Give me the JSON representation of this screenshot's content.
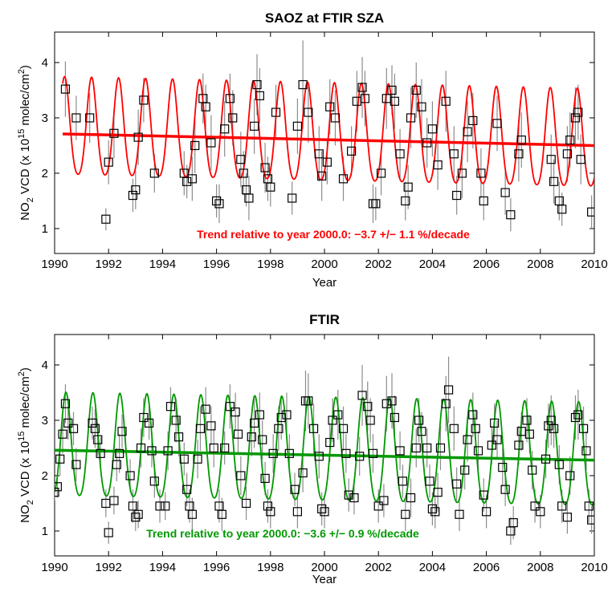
{
  "chart_data": [
    {
      "type": "scatter",
      "title": "SAOZ at FTIR SZA",
      "xlabel": "Year",
      "ylabel": {
        "main": "NO",
        "sub": "2",
        "mid": " VCD (x 10",
        "sup": "15",
        "rest": " molec/cm",
        "sup2": "2",
        "end": ")"
      },
      "xlim": [
        1990,
        2010
      ],
      "ylim": [
        0.55,
        4.55
      ],
      "xticks": [
        "1990",
        "1992",
        "1994",
        "1996",
        "1998",
        "2000",
        "2002",
        "2004",
        "2006",
        "2008",
        "2010"
      ],
      "yticks": [
        "1",
        "2",
        "3",
        "4"
      ],
      "annotation": "Trend relative to year 2000.0: −3.7 +/− 1.1 %/decade",
      "colors": {
        "fit": "#ff0000",
        "trend": "#ff0000",
        "annotation": "#ff0000",
        "errorbar": "#8c8c8c",
        "marker": "#000000"
      },
      "trend_line": {
        "x": [
          1990.3,
          2010.0
        ],
        "y": [
          2.71,
          2.5
        ]
      },
      "seasonal_fit": {
        "x_start": 1990.3,
        "x_end": 2010.0,
        "mean": 2.64,
        "slope_per_year": -0.011,
        "amplitude": 0.88,
        "peak_phase": 0.37
      },
      "data": [
        [
          1990.4,
          3.52,
          0.5
        ],
        [
          1990.8,
          3.0,
          0.4
        ],
        [
          1991.3,
          3.0,
          0.45
        ],
        [
          1991.9,
          1.17,
          0.2
        ],
        [
          1992.0,
          2.2,
          0.4
        ],
        [
          1992.2,
          2.72,
          0.45
        ],
        [
          1992.9,
          1.6,
          0.3
        ],
        [
          1993.0,
          1.7,
          0.35
        ],
        [
          1993.1,
          2.65,
          0.5
        ],
        [
          1993.3,
          3.32,
          0.4
        ],
        [
          1993.7,
          2.0,
          0.35
        ],
        [
          1994.8,
          2.0,
          0.4
        ],
        [
          1994.9,
          1.85,
          0.3
        ],
        [
          1995.1,
          1.9,
          0.4
        ],
        [
          1995.2,
          2.5,
          0.5
        ],
        [
          1995.5,
          3.35,
          0.45
        ],
        [
          1995.6,
          3.2,
          0.4
        ],
        [
          1995.8,
          2.55,
          0.5
        ],
        [
          1996.0,
          1.5,
          0.3
        ],
        [
          1996.1,
          1.45,
          0.35
        ],
        [
          1996.3,
          2.8,
          0.5
        ],
        [
          1996.5,
          3.35,
          0.45
        ],
        [
          1996.6,
          3.0,
          0.5
        ],
        [
          1996.9,
          2.25,
          0.5
        ],
        [
          1997.0,
          2.0,
          0.4
        ],
        [
          1997.1,
          1.7,
          0.3
        ],
        [
          1997.2,
          1.55,
          0.4
        ],
        [
          1997.4,
          2.85,
          0.5
        ],
        [
          1997.5,
          3.6,
          0.55
        ],
        [
          1997.6,
          3.4,
          0.5
        ],
        [
          1997.8,
          2.1,
          0.45
        ],
        [
          1997.9,
          1.9,
          0.4
        ],
        [
          1998.0,
          1.75,
          0.35
        ],
        [
          1998.2,
          3.1,
          0.5
        ],
        [
          1998.8,
          1.55,
          0.3
        ],
        [
          1999.0,
          2.85,
          0.5
        ],
        [
          1999.2,
          3.6,
          0.8
        ],
        [
          1999.4,
          3.1,
          0.55
        ],
        [
          1999.8,
          2.35,
          0.5
        ],
        [
          1999.9,
          1.95,
          0.45
        ],
        [
          2000.1,
          2.2,
          0.4
        ],
        [
          2000.2,
          3.2,
          0.5
        ],
        [
          2000.4,
          3.0,
          0.5
        ],
        [
          2000.7,
          1.9,
          0.4
        ],
        [
          2001.0,
          2.4,
          0.45
        ],
        [
          2001.2,
          3.3,
          0.55
        ],
        [
          2001.4,
          3.55,
          0.55
        ],
        [
          2001.5,
          3.35,
          0.5
        ],
        [
          2001.8,
          1.45,
          0.35
        ],
        [
          2001.9,
          1.45,
          0.3
        ],
        [
          2002.1,
          2.0,
          0.4
        ],
        [
          2002.3,
          3.35,
          0.55
        ],
        [
          2002.5,
          3.5,
          0.45
        ],
        [
          2002.6,
          3.3,
          0.5
        ],
        [
          2002.8,
          2.35,
          0.45
        ],
        [
          2003.0,
          1.5,
          0.35
        ],
        [
          2003.1,
          1.75,
          0.4
        ],
        [
          2003.2,
          3.0,
          0.55
        ],
        [
          2003.4,
          3.5,
          0.5
        ],
        [
          2003.6,
          3.2,
          0.5
        ],
        [
          2003.8,
          2.55,
          0.45
        ],
        [
          2004.0,
          2.8,
          0.5
        ],
        [
          2004.2,
          2.15,
          0.45
        ],
        [
          2004.5,
          3.3,
          0.55
        ],
        [
          2004.8,
          2.35,
          0.5
        ],
        [
          2004.9,
          1.6,
          0.35
        ],
        [
          2005.1,
          2.0,
          0.45
        ],
        [
          2005.3,
          2.75,
          0.55
        ],
        [
          2005.5,
          2.95,
          0.5
        ],
        [
          2005.8,
          2.0,
          0.45
        ],
        [
          2005.9,
          1.5,
          0.35
        ],
        [
          2006.4,
          2.9,
          0.5
        ],
        [
          2006.7,
          1.65,
          0.4
        ],
        [
          2006.9,
          1.25,
          0.3
        ],
        [
          2007.2,
          2.35,
          0.5
        ],
        [
          2007.3,
          2.6,
          0.5
        ],
        [
          2008.4,
          2.25,
          0.45
        ],
        [
          2008.5,
          1.85,
          0.4
        ],
        [
          2008.7,
          1.5,
          0.35
        ],
        [
          2008.8,
          1.35,
          0.3
        ],
        [
          2009.0,
          2.35,
          0.5
        ],
        [
          2009.1,
          2.6,
          0.5
        ],
        [
          2009.3,
          3.0,
          0.55
        ],
        [
          2009.4,
          3.1,
          0.5
        ],
        [
          2009.5,
          2.25,
          0.45
        ],
        [
          2009.9,
          1.3,
          0.3
        ]
      ]
    },
    {
      "type": "scatter",
      "title": "FTIR",
      "xlabel": "Year",
      "ylabel": {
        "main": "NO",
        "sub": "2",
        "mid": " VCD (x 10",
        "sup": "15",
        "rest": " molec/cm",
        "sup2": "2",
        "end": ")"
      },
      "xlim": [
        1990,
        2010
      ],
      "ylim": [
        0.55,
        4.55
      ],
      "xticks": [
        "1990",
        "1992",
        "1994",
        "1996",
        "1998",
        "2000",
        "2002",
        "2004",
        "2006",
        "2008",
        "2010"
      ],
      "yticks": [
        "1",
        "2",
        "3",
        "4"
      ],
      "annotation": "Trend relative to year 2000.0: −3.6 +/− 0.9 %/decade",
      "colors": {
        "fit": "#009900",
        "trend": "#009900",
        "annotation": "#009900",
        "errorbar": "#8c8c8c",
        "marker": "#000000"
      },
      "trend_line": {
        "x": [
          1990.0,
          2010.0
        ],
        "y": [
          2.46,
          2.28
        ]
      },
      "seasonal_fit": {
        "x_start": 1990.0,
        "x_end": 2010.0,
        "mean": 2.37,
        "slope_per_year": -0.009,
        "amplitude": 0.93,
        "peak_phase": 0.42
      },
      "data": [
        [
          1990.0,
          1.7,
          0.15
        ],
        [
          1990.1,
          1.8,
          0.2
        ],
        [
          1990.2,
          2.3,
          0.3
        ],
        [
          1990.3,
          2.75,
          0.35
        ],
        [
          1990.4,
          3.3,
          0.35
        ],
        [
          1990.5,
          2.95,
          0.3
        ],
        [
          1990.7,
          2.85,
          0.3
        ],
        [
          1990.8,
          2.2,
          0.3
        ],
        [
          1991.4,
          2.95,
          0.3
        ],
        [
          1991.5,
          2.85,
          0.35
        ],
        [
          1991.6,
          2.65,
          0.3
        ],
        [
          1991.7,
          2.4,
          0.3
        ],
        [
          1991.9,
          1.5,
          0.25
        ],
        [
          1992.0,
          0.97,
          0.2
        ],
        [
          1992.2,
          1.55,
          0.25
        ],
        [
          1992.3,
          2.2,
          0.3
        ],
        [
          1992.4,
          2.4,
          0.35
        ],
        [
          1992.5,
          2.8,
          0.3
        ],
        [
          1992.8,
          2.0,
          0.3
        ],
        [
          1992.9,
          1.45,
          0.3
        ],
        [
          1993.0,
          1.25,
          0.25
        ],
        [
          1993.1,
          1.3,
          0.25
        ],
        [
          1993.2,
          2.5,
          0.35
        ],
        [
          1993.3,
          3.05,
          0.35
        ],
        [
          1993.5,
          2.95,
          0.3
        ],
        [
          1993.6,
          2.45,
          0.3
        ],
        [
          1993.7,
          1.9,
          0.3
        ],
        [
          1993.9,
          1.45,
          0.3
        ],
        [
          1994.1,
          1.45,
          0.25
        ],
        [
          1994.2,
          2.45,
          0.35
        ],
        [
          1994.3,
          3.25,
          0.35
        ],
        [
          1994.5,
          3.0,
          0.4
        ],
        [
          1994.6,
          2.7,
          0.35
        ],
        [
          1994.8,
          2.3,
          0.3
        ],
        [
          1994.9,
          1.75,
          0.3
        ],
        [
          1995.0,
          1.45,
          0.3
        ],
        [
          1995.1,
          1.3,
          0.3
        ],
        [
          1995.3,
          2.3,
          0.35
        ],
        [
          1995.4,
          2.85,
          0.4
        ],
        [
          1995.6,
          3.2,
          0.4
        ],
        [
          1995.8,
          2.9,
          0.35
        ],
        [
          1995.9,
          2.5,
          0.35
        ],
        [
          1996.1,
          1.45,
          0.3
        ],
        [
          1996.2,
          1.3,
          0.3
        ],
        [
          1996.3,
          2.5,
          0.3
        ],
        [
          1996.5,
          3.25,
          0.4
        ],
        [
          1996.7,
          3.15,
          0.35
        ],
        [
          1996.8,
          2.75,
          0.35
        ],
        [
          1996.9,
          2.0,
          0.35
        ],
        [
          1997.1,
          1.5,
          0.3
        ],
        [
          1997.3,
          2.7,
          0.35
        ],
        [
          1997.4,
          2.95,
          0.45
        ],
        [
          1997.6,
          3.1,
          0.4
        ],
        [
          1997.7,
          2.65,
          0.35
        ],
        [
          1997.8,
          1.95,
          0.3
        ],
        [
          1997.9,
          1.45,
          0.3
        ],
        [
          1998.0,
          1.35,
          0.3
        ],
        [
          1998.1,
          2.4,
          0.35
        ],
        [
          1998.3,
          2.85,
          0.4
        ],
        [
          1998.4,
          3.05,
          0.4
        ],
        [
          1998.6,
          3.1,
          0.4
        ],
        [
          1998.7,
          2.4,
          0.35
        ],
        [
          1998.9,
          1.75,
          0.3
        ],
        [
          1999.0,
          1.35,
          0.3
        ],
        [
          1999.2,
          2.05,
          0.35
        ],
        [
          1999.3,
          3.35,
          0.55
        ],
        [
          1999.4,
          3.35,
          0.5
        ],
        [
          1999.6,
          2.85,
          0.45
        ],
        [
          1999.8,
          2.35,
          0.4
        ],
        [
          1999.9,
          1.4,
          0.3
        ],
        [
          2000.0,
          1.35,
          0.3
        ],
        [
          2000.2,
          2.6,
          0.35
        ],
        [
          2000.3,
          3.0,
          0.4
        ],
        [
          2000.5,
          3.1,
          0.45
        ],
        [
          2000.7,
          2.85,
          0.4
        ],
        [
          2000.8,
          2.4,
          0.35
        ],
        [
          2000.9,
          1.65,
          0.3
        ],
        [
          2001.1,
          1.6,
          0.3
        ],
        [
          2001.3,
          2.35,
          0.35
        ],
        [
          2001.4,
          3.45,
          0.55
        ],
        [
          2001.6,
          3.25,
          0.45
        ],
        [
          2001.7,
          3.0,
          0.4
        ],
        [
          2001.8,
          2.4,
          0.35
        ],
        [
          2002.0,
          1.45,
          0.3
        ],
        [
          2002.2,
          1.55,
          0.3
        ],
        [
          2002.3,
          3.3,
          0.5
        ],
        [
          2002.5,
          3.35,
          0.5
        ],
        [
          2002.6,
          3.05,
          0.4
        ],
        [
          2002.8,
          2.45,
          0.35
        ],
        [
          2002.9,
          1.9,
          0.3
        ],
        [
          2003.0,
          1.3,
          0.3
        ],
        [
          2003.2,
          1.6,
          0.35
        ],
        [
          2003.4,
          2.5,
          0.35
        ],
        [
          2003.5,
          3.0,
          0.4
        ],
        [
          2003.6,
          2.8,
          0.35
        ],
        [
          2003.8,
          2.5,
          0.35
        ],
        [
          2003.9,
          1.9,
          0.3
        ],
        [
          2004.0,
          1.4,
          0.3
        ],
        [
          2004.1,
          1.35,
          0.3
        ],
        [
          2004.2,
          1.7,
          0.35
        ],
        [
          2004.3,
          2.5,
          0.4
        ],
        [
          2004.5,
          3.3,
          0.5
        ],
        [
          2004.6,
          3.55,
          0.6
        ],
        [
          2004.8,
          2.85,
          0.4
        ],
        [
          2004.9,
          1.85,
          0.3
        ],
        [
          2005.0,
          1.3,
          0.3
        ],
        [
          2005.2,
          2.1,
          0.35
        ],
        [
          2005.3,
          2.65,
          0.4
        ],
        [
          2005.5,
          3.1,
          0.4
        ],
        [
          2005.6,
          2.85,
          0.35
        ],
        [
          2005.7,
          2.45,
          0.35
        ],
        [
          2005.9,
          1.65,
          0.3
        ],
        [
          2006.0,
          1.35,
          0.3
        ],
        [
          2006.2,
          2.55,
          0.35
        ],
        [
          2006.3,
          2.95,
          0.35
        ],
        [
          2006.4,
          2.65,
          0.35
        ],
        [
          2006.6,
          2.15,
          0.35
        ],
        [
          2006.7,
          1.75,
          0.3
        ],
        [
          2006.9,
          1.0,
          0.25
        ],
        [
          2007.0,
          1.15,
          0.3
        ],
        [
          2007.2,
          2.55,
          0.35
        ],
        [
          2007.3,
          2.8,
          0.35
        ],
        [
          2007.5,
          3.0,
          0.4
        ],
        [
          2007.6,
          2.75,
          0.35
        ],
        [
          2007.7,
          2.1,
          0.35
        ],
        [
          2007.8,
          1.45,
          0.3
        ],
        [
          2008.0,
          1.35,
          0.3
        ],
        [
          2008.2,
          2.3,
          0.35
        ],
        [
          2008.3,
          2.9,
          0.4
        ],
        [
          2008.4,
          3.0,
          0.45
        ],
        [
          2008.5,
          2.85,
          0.35
        ],
        [
          2008.7,
          2.2,
          0.35
        ],
        [
          2008.8,
          1.45,
          0.3
        ],
        [
          2009.0,
          1.25,
          0.3
        ],
        [
          2009.1,
          2.0,
          0.35
        ],
        [
          2009.3,
          3.05,
          0.4
        ],
        [
          2009.4,
          3.1,
          0.45
        ],
        [
          2009.6,
          2.85,
          0.4
        ],
        [
          2009.7,
          2.45,
          0.35
        ],
        [
          2009.8,
          1.45,
          0.3
        ],
        [
          2009.9,
          1.2,
          0.25
        ]
      ]
    }
  ]
}
